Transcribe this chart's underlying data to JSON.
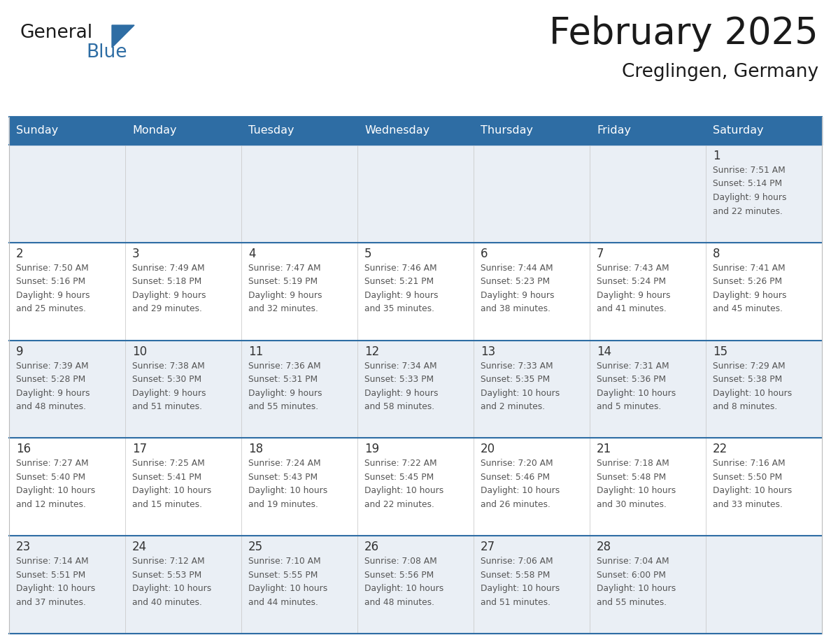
{
  "title": "February 2025",
  "subtitle": "Creglingen, Germany",
  "header_bg": "#2E6DA4",
  "header_text_color": "#FFFFFF",
  "cell_bg_even": "#EAEFF5",
  "cell_bg_odd": "#FFFFFF",
  "border_color": "#2E6DA4",
  "text_color_dark": "#333333",
  "day_number_color": "#333333",
  "info_text_color": "#555555",
  "days_of_week": [
    "Sunday",
    "Monday",
    "Tuesday",
    "Wednesday",
    "Thursday",
    "Friday",
    "Saturday"
  ],
  "calendar_data": [
    [
      {
        "day": "",
        "info": ""
      },
      {
        "day": "",
        "info": ""
      },
      {
        "day": "",
        "info": ""
      },
      {
        "day": "",
        "info": ""
      },
      {
        "day": "",
        "info": ""
      },
      {
        "day": "",
        "info": ""
      },
      {
        "day": "1",
        "info": "Sunrise: 7:51 AM\nSunset: 5:14 PM\nDaylight: 9 hours\nand 22 minutes."
      }
    ],
    [
      {
        "day": "2",
        "info": "Sunrise: 7:50 AM\nSunset: 5:16 PM\nDaylight: 9 hours\nand 25 minutes."
      },
      {
        "day": "3",
        "info": "Sunrise: 7:49 AM\nSunset: 5:18 PM\nDaylight: 9 hours\nand 29 minutes."
      },
      {
        "day": "4",
        "info": "Sunrise: 7:47 AM\nSunset: 5:19 PM\nDaylight: 9 hours\nand 32 minutes."
      },
      {
        "day": "5",
        "info": "Sunrise: 7:46 AM\nSunset: 5:21 PM\nDaylight: 9 hours\nand 35 minutes."
      },
      {
        "day": "6",
        "info": "Sunrise: 7:44 AM\nSunset: 5:23 PM\nDaylight: 9 hours\nand 38 minutes."
      },
      {
        "day": "7",
        "info": "Sunrise: 7:43 AM\nSunset: 5:24 PM\nDaylight: 9 hours\nand 41 minutes."
      },
      {
        "day": "8",
        "info": "Sunrise: 7:41 AM\nSunset: 5:26 PM\nDaylight: 9 hours\nand 45 minutes."
      }
    ],
    [
      {
        "day": "9",
        "info": "Sunrise: 7:39 AM\nSunset: 5:28 PM\nDaylight: 9 hours\nand 48 minutes."
      },
      {
        "day": "10",
        "info": "Sunrise: 7:38 AM\nSunset: 5:30 PM\nDaylight: 9 hours\nand 51 minutes."
      },
      {
        "day": "11",
        "info": "Sunrise: 7:36 AM\nSunset: 5:31 PM\nDaylight: 9 hours\nand 55 minutes."
      },
      {
        "day": "12",
        "info": "Sunrise: 7:34 AM\nSunset: 5:33 PM\nDaylight: 9 hours\nand 58 minutes."
      },
      {
        "day": "13",
        "info": "Sunrise: 7:33 AM\nSunset: 5:35 PM\nDaylight: 10 hours\nand 2 minutes."
      },
      {
        "day": "14",
        "info": "Sunrise: 7:31 AM\nSunset: 5:36 PM\nDaylight: 10 hours\nand 5 minutes."
      },
      {
        "day": "15",
        "info": "Sunrise: 7:29 AM\nSunset: 5:38 PM\nDaylight: 10 hours\nand 8 minutes."
      }
    ],
    [
      {
        "day": "16",
        "info": "Sunrise: 7:27 AM\nSunset: 5:40 PM\nDaylight: 10 hours\nand 12 minutes."
      },
      {
        "day": "17",
        "info": "Sunrise: 7:25 AM\nSunset: 5:41 PM\nDaylight: 10 hours\nand 15 minutes."
      },
      {
        "day": "18",
        "info": "Sunrise: 7:24 AM\nSunset: 5:43 PM\nDaylight: 10 hours\nand 19 minutes."
      },
      {
        "day": "19",
        "info": "Sunrise: 7:22 AM\nSunset: 5:45 PM\nDaylight: 10 hours\nand 22 minutes."
      },
      {
        "day": "20",
        "info": "Sunrise: 7:20 AM\nSunset: 5:46 PM\nDaylight: 10 hours\nand 26 minutes."
      },
      {
        "day": "21",
        "info": "Sunrise: 7:18 AM\nSunset: 5:48 PM\nDaylight: 10 hours\nand 30 minutes."
      },
      {
        "day": "22",
        "info": "Sunrise: 7:16 AM\nSunset: 5:50 PM\nDaylight: 10 hours\nand 33 minutes."
      }
    ],
    [
      {
        "day": "23",
        "info": "Sunrise: 7:14 AM\nSunset: 5:51 PM\nDaylight: 10 hours\nand 37 minutes."
      },
      {
        "day": "24",
        "info": "Sunrise: 7:12 AM\nSunset: 5:53 PM\nDaylight: 10 hours\nand 40 minutes."
      },
      {
        "day": "25",
        "info": "Sunrise: 7:10 AM\nSunset: 5:55 PM\nDaylight: 10 hours\nand 44 minutes."
      },
      {
        "day": "26",
        "info": "Sunrise: 7:08 AM\nSunset: 5:56 PM\nDaylight: 10 hours\nand 48 minutes."
      },
      {
        "day": "27",
        "info": "Sunrise: 7:06 AM\nSunset: 5:58 PM\nDaylight: 10 hours\nand 51 minutes."
      },
      {
        "day": "28",
        "info": "Sunrise: 7:04 AM\nSunset: 6:00 PM\nDaylight: 10 hours\nand 55 minutes."
      },
      {
        "day": "",
        "info": ""
      }
    ]
  ],
  "logo_text1": "General",
  "logo_text2": "Blue",
  "logo_color1": "#1a1a1a",
  "logo_color2": "#2E6DA4",
  "fig_width": 11.88,
  "fig_height": 9.18,
  "dpi": 100
}
